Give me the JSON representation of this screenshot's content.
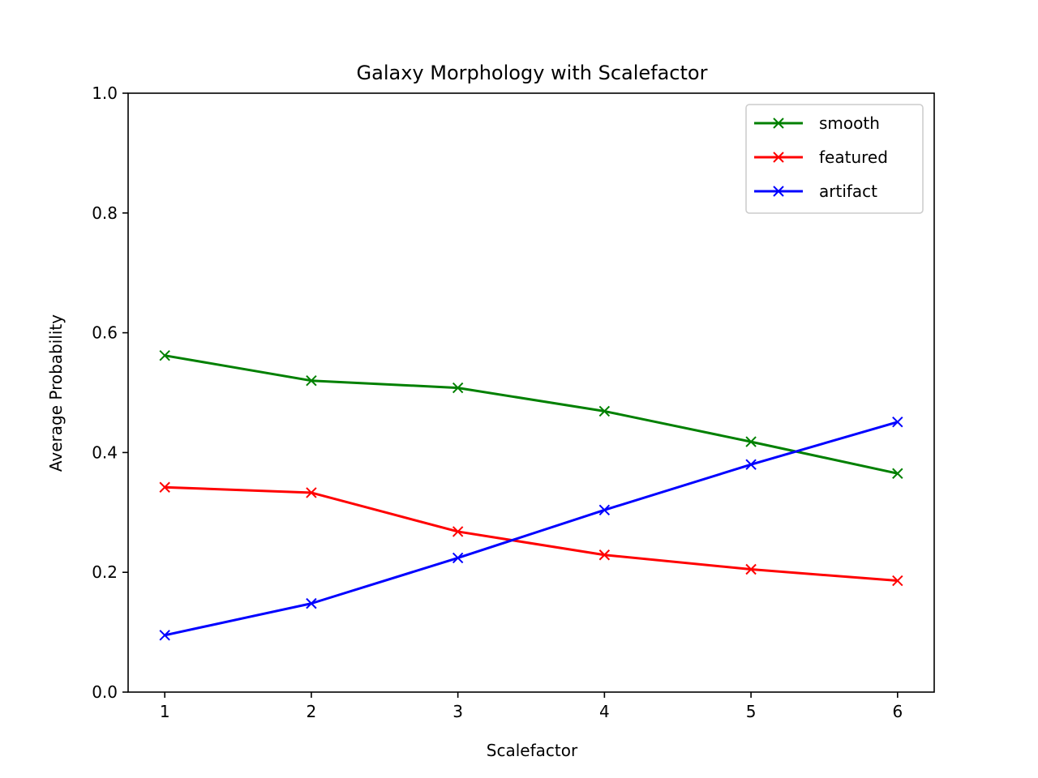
{
  "chart_data": {
    "type": "line",
    "title": "Galaxy Morphology with Scalefactor",
    "xlabel": "Scalefactor",
    "ylabel": "Average Probability",
    "x": [
      1,
      2,
      3,
      4,
      5,
      6
    ],
    "xlim": [
      0.75,
      6.25
    ],
    "ylim": [
      0.0,
      1.0
    ],
    "xticks": [
      1,
      2,
      3,
      4,
      5,
      6
    ],
    "yticks": [
      0.0,
      0.2,
      0.4,
      0.6,
      0.8,
      1.0
    ],
    "xtick_labels": [
      "1",
      "2",
      "3",
      "4",
      "5",
      "6"
    ],
    "ytick_labels": [
      "0.0",
      "0.2",
      "0.4",
      "0.6",
      "0.8",
      "1.0"
    ],
    "grid": false,
    "legend_position": "top-right",
    "marker": "x",
    "series": [
      {
        "name": "smooth",
        "color": "#008000",
        "values": [
          0.562,
          0.52,
          0.508,
          0.469,
          0.418,
          0.365
        ]
      },
      {
        "name": "featured",
        "color": "#ff0000",
        "values": [
          0.342,
          0.333,
          0.268,
          0.229,
          0.205,
          0.186
        ]
      },
      {
        "name": "artifact",
        "color": "#0000ff",
        "values": [
          0.095,
          0.148,
          0.224,
          0.304,
          0.38,
          0.451
        ]
      }
    ]
  }
}
